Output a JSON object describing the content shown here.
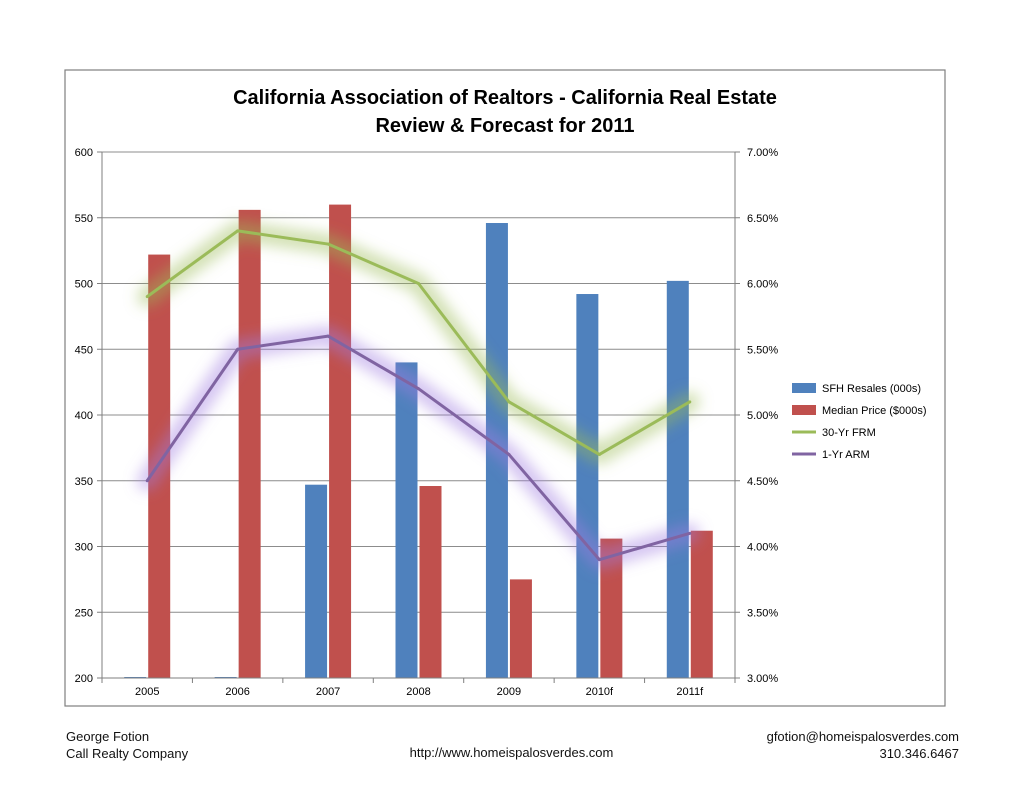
{
  "chart_data": {
    "type": "bar",
    "title_lines": [
      "California Association of Realtors - California Real Estate",
      "Review & Forecast for 2011"
    ],
    "categories": [
      "2005",
      "2006",
      "2007",
      "2008",
      "2009",
      "2010f",
      "2011f"
    ],
    "left_axis": {
      "min": 200,
      "max": 600,
      "step": 50,
      "tick_labels": [
        "200",
        "250",
        "300",
        "350",
        "400",
        "450",
        "500",
        "550",
        "600"
      ]
    },
    "right_axis": {
      "min": 3.0,
      "max": 7.0,
      "step": 0.5,
      "tick_labels": [
        "3.00%",
        "3.50%",
        "4.00%",
        "4.50%",
        "5.00%",
        "5.50%",
        "6.00%",
        "6.50%",
        "7.00%"
      ]
    },
    "bar_series": [
      {
        "name": "SFH Resales (000s)",
        "color": "#4F81BD",
        "values": [
          200,
          200,
          347,
          440,
          546,
          492,
          502
        ]
      },
      {
        "name": "Median Price ($000s)",
        "color": "#C0504D",
        "values": [
          522,
          556,
          560,
          346,
          275,
          306,
          312
        ]
      }
    ],
    "line_series": [
      {
        "name": "30-Yr FRM",
        "color": "#9BBB59",
        "glow": "#9BBB59",
        "axis": "right",
        "values": [
          5.9,
          6.4,
          6.3,
          6.0,
          5.1,
          4.7,
          5.1
        ]
      },
      {
        "name": "1-Yr ARM",
        "color": "#8064A2",
        "glow": "#A07CE0",
        "axis": "right",
        "values": [
          4.5,
          5.5,
          5.6,
          5.2,
          4.7,
          3.9,
          4.1
        ]
      }
    ],
    "legend_position": "right",
    "grid": "horizontal"
  },
  "footer": {
    "name": "George Fotion",
    "company": "Call Realty Company",
    "website": "http://www.homeispalosverdes.com",
    "email": "gfotion@homeispalosverdes.com",
    "phone": "310.346.6467"
  }
}
